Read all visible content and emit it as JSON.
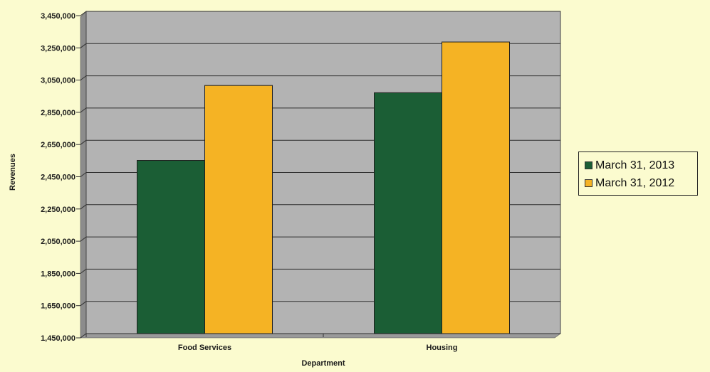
{
  "chart_data": {
    "type": "bar",
    "title": "",
    "xlabel": "Department",
    "ylabel": "Revenues",
    "categories": [
      "Food Services",
      "Housing"
    ],
    "series": [
      {
        "name": "March 31, 2013",
        "color": "#1b5e35",
        "values": [
          2525000,
          2945000
        ]
      },
      {
        "name": "March 31, 2012",
        "color": "#f5b324",
        "values": [
          2990000,
          3260000
        ]
      }
    ],
    "ylim": [
      1450000,
      3450000
    ],
    "yticks": [
      1450000,
      1650000,
      1850000,
      2050000,
      2250000,
      2450000,
      2650000,
      2850000,
      3050000,
      3250000,
      3450000
    ],
    "ytick_labels": [
      "1,450,000",
      "1,650,000",
      "1,850,000",
      "2,050,000",
      "2,250,000",
      "2,450,000",
      "2,650,000",
      "2,850,000",
      "3,050,000",
      "3,250,000",
      "3,450,000"
    ],
    "grid": true,
    "legend_position": "right",
    "plot_background": "#b3b3b3",
    "page_background": "#fbfbcf"
  }
}
